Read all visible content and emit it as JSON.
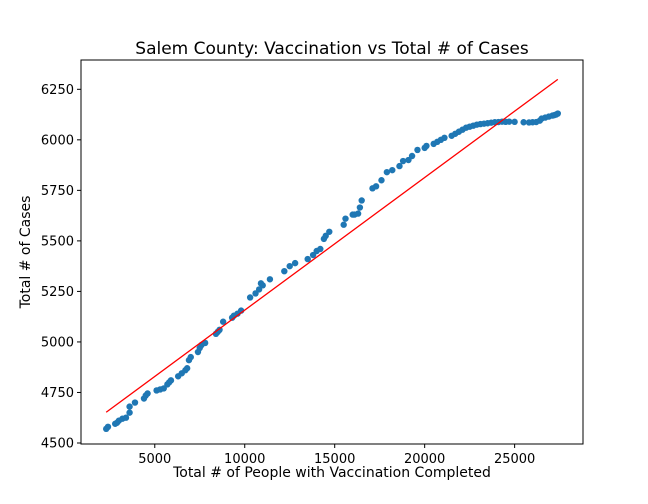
{
  "chart_data": {
    "type": "scatter",
    "title": "Salem County: Vaccination vs Total # of Cases",
    "xlabel": "Total # of People with Vaccination Completed",
    "ylabel": "Total # of Cases",
    "xlim": [
      900,
      28800
    ],
    "ylim": [
      4495,
      6395
    ],
    "xticks": [
      5000,
      10000,
      15000,
      20000,
      25000
    ],
    "xtick_labels": [
      "5000",
      "10000",
      "15000",
      "20000",
      "25000"
    ],
    "yticks": [
      4500,
      4750,
      5000,
      5250,
      5500,
      5750,
      6000,
      6250
    ],
    "ytick_labels": [
      "4500",
      "4750",
      "5000",
      "5250",
      "5500",
      "5750",
      "6000",
      "6250"
    ],
    "grid": false,
    "series": [
      {
        "kind": "scatter",
        "color": "#1f77b4",
        "x": [
          2300,
          2400,
          2800,
          2900,
          3000,
          3200,
          3400,
          3600,
          3600,
          3900,
          4400,
          4500,
          4600,
          5100,
          5300,
          5500,
          5700,
          5800,
          5900,
          6300,
          6500,
          6700,
          6800,
          6900,
          7000,
          7400,
          7500,
          7600,
          7800,
          8400,
          8500,
          8600,
          8800,
          9300,
          9400,
          9600,
          9800,
          10300,
          10600,
          10800,
          10900,
          11000,
          11400,
          12200,
          12500,
          12800,
          13500,
          13800,
          14000,
          14200,
          14400,
          14500,
          14700,
          15500,
          15600,
          16000,
          16100,
          16300,
          16400,
          16500,
          17100,
          17300,
          17600,
          17900,
          18200,
          18600,
          18800,
          19100,
          19300,
          19600,
          20000,
          20100,
          20500,
          20700,
          20900,
          21100,
          21500,
          21700,
          21900,
          22100,
          22300,
          22500,
          22700,
          22900,
          23100,
          23300,
          23500,
          23700,
          23900,
          24100,
          24300,
          24500,
          24700,
          25000,
          25500,
          25800,
          26000,
          26200,
          26400,
          26500,
          26700,
          26900,
          27100,
          27200,
          27300,
          27400
        ],
        "y": [
          4570,
          4580,
          4595,
          4600,
          4610,
          4620,
          4625,
          4650,
          4680,
          4700,
          4720,
          4735,
          4745,
          4760,
          4765,
          4770,
          4790,
          4800,
          4810,
          4830,
          4845,
          4860,
          4870,
          4910,
          4925,
          4950,
          4970,
          4985,
          4995,
          5040,
          5050,
          5060,
          5100,
          5120,
          5130,
          5140,
          5155,
          5220,
          5240,
          5260,
          5290,
          5280,
          5310,
          5350,
          5375,
          5390,
          5410,
          5430,
          5450,
          5460,
          5510,
          5525,
          5545,
          5580,
          5610,
          5630,
          5630,
          5635,
          5665,
          5700,
          5760,
          5770,
          5800,
          5840,
          5850,
          5870,
          5895,
          5900,
          5920,
          5950,
          5960,
          5970,
          5980,
          5990,
          6000,
          6010,
          6020,
          6030,
          6040,
          6050,
          6060,
          6065,
          6070,
          6075,
          6078,
          6080,
          6082,
          6085,
          6087,
          6088,
          6090,
          6089,
          6090,
          6089,
          6087,
          6086,
          6087,
          6088,
          6095,
          6105,
          6110,
          6115,
          6120,
          6122,
          6125,
          6130
        ]
      },
      {
        "kind": "line",
        "color": "#ff0000",
        "x": [
          2300,
          27400
        ],
        "y": [
          4652,
          6299
        ]
      }
    ]
  }
}
